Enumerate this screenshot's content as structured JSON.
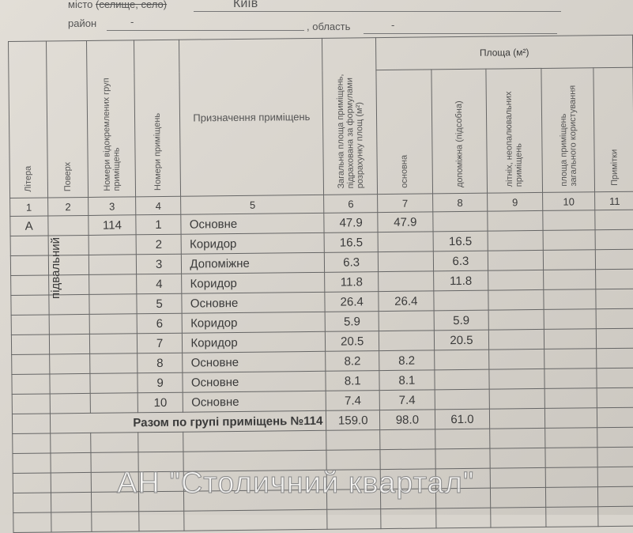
{
  "header": {
    "city_label": "місто",
    "city_struck": "(селище, село)",
    "city_value": "Київ",
    "district_label": "район",
    "district_value": "-",
    "region_label": ", область",
    "region_value": "-"
  },
  "columns": {
    "c1": "Літера",
    "c2": "Поверх",
    "c3": "Номери відокремлених груп приміщень",
    "c4": "Номери приміщень",
    "c5": "Призначення приміщень",
    "c6": "Загальна площа приміщень, підрахована за формулами розрахунку площ (м²)",
    "area": "Площа (м²)",
    "c7": "основна",
    "c8": "допоміжна (підсобна)",
    "c9": "літніх, неопалювальних приміщень",
    "c10": "площа приміщень загального користування",
    "c11": "Примітки"
  },
  "column_numbers": [
    "1",
    "2",
    "3",
    "4",
    "5",
    "6",
    "7",
    "8",
    "9",
    "10",
    "11"
  ],
  "letter": "А",
  "floor": "підвальний",
  "group": "114",
  "rows": [
    {
      "n": "1",
      "purpose": "Основне",
      "total": "47.9",
      "main": "47.9",
      "aux": ""
    },
    {
      "n": "2",
      "purpose": "Коридор",
      "total": "16.5",
      "main": "",
      "aux": "16.5"
    },
    {
      "n": "3",
      "purpose": "Допоміжне",
      "total": "6.3",
      "main": "",
      "aux": "6.3"
    },
    {
      "n": "4",
      "purpose": "Коридор",
      "total": "11.8",
      "main": "",
      "aux": "11.8"
    },
    {
      "n": "5",
      "purpose": "Основне",
      "total": "26.4",
      "main": "26.4",
      "aux": ""
    },
    {
      "n": "6",
      "purpose": "Коридор",
      "total": "5.9",
      "main": "",
      "aux": "5.9"
    },
    {
      "n": "7",
      "purpose": "Коридор",
      "total": "20.5",
      "main": "",
      "aux": "20.5"
    },
    {
      "n": "8",
      "purpose": "Основне",
      "total": "8.2",
      "main": "8.2",
      "aux": ""
    },
    {
      "n": "9",
      "purpose": "Основне",
      "total": "8.1",
      "main": "8.1",
      "aux": ""
    },
    {
      "n": "10",
      "purpose": "Основне",
      "total": "7.4",
      "main": "7.4",
      "aux": ""
    }
  ],
  "summary": {
    "label": "Разом по групі приміщень №114",
    "total": "159.0",
    "main": "98.0",
    "aux": "61.0"
  },
  "watermark": "АН \"Столичний квартал\""
}
